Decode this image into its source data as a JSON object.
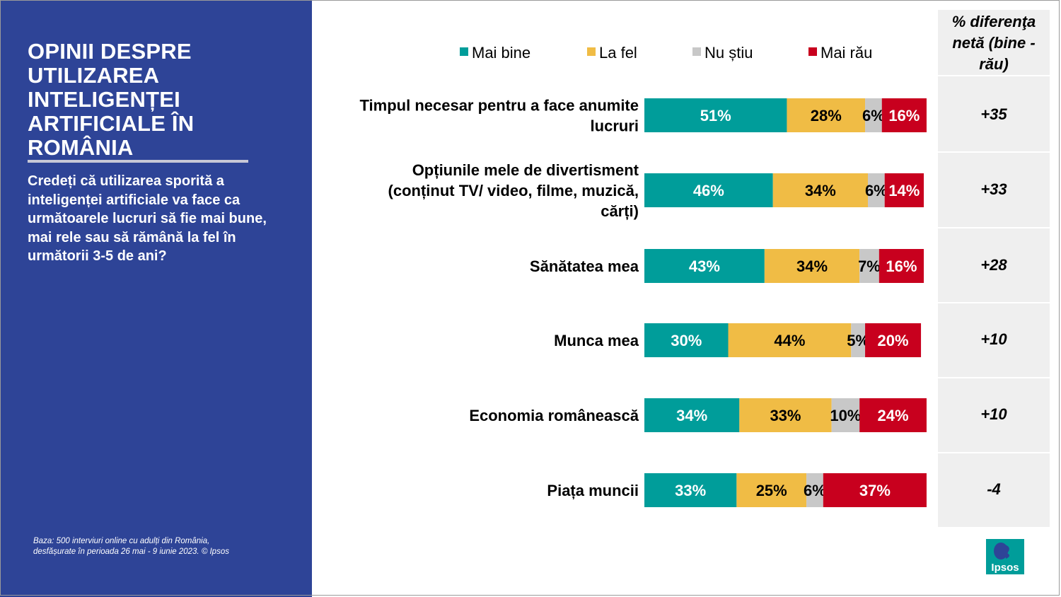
{
  "slide": {
    "title": "OPINII DESPRE UTILIZAREA INTELIGENȚEI ARTIFICIALE ÎN ROMÂNIA",
    "question": "Credeți că utilizarea sporită a inteligenței artificiale va face ca următoarele lucruri să fie mai bune, mai rele sau să rămână la fel în următorii 3-5 de ani?",
    "base_note": "Baza: 500 interviuri online cu adulți din România, desfășurate în perioada 26 mai - 9 iunie 2023. © Ipsos",
    "net_header": "% diferenţa netă (bine - rău)",
    "logo_text": "Ipsos"
  },
  "chart_data": {
    "type": "bar",
    "orientation": "horizontal",
    "stacked": true,
    "categories": [
      "Timpul necesar pentru a face anumite lucruri",
      "Opțiunile mele de divertisment (conținut TV/ video, filme, muzică, cărți)",
      "Sănătatea mea",
      "Munca mea",
      "Economia românească",
      "Piața muncii"
    ],
    "series": [
      {
        "name": "Mai bine",
        "color": "#009d9a",
        "values": [
          51,
          46,
          43,
          30,
          34,
          33
        ]
      },
      {
        "name": "La fel",
        "color": "#f0bc45",
        "values": [
          28,
          34,
          34,
          44,
          33,
          25
        ]
      },
      {
        "name": "Nu știu",
        "color": "#c8c8c8",
        "values": [
          6,
          6,
          7,
          5,
          10,
          6
        ]
      },
      {
        "name": "Mai rău",
        "color": "#c8001e",
        "values": [
          16,
          14,
          16,
          20,
          24,
          37
        ]
      }
    ],
    "net_difference": [
      "+35",
      "+33",
      "+28",
      "+10",
      "+10",
      "-4"
    ],
    "legend_position": "top",
    "xlim": [
      0,
      100
    ],
    "grid": false
  }
}
